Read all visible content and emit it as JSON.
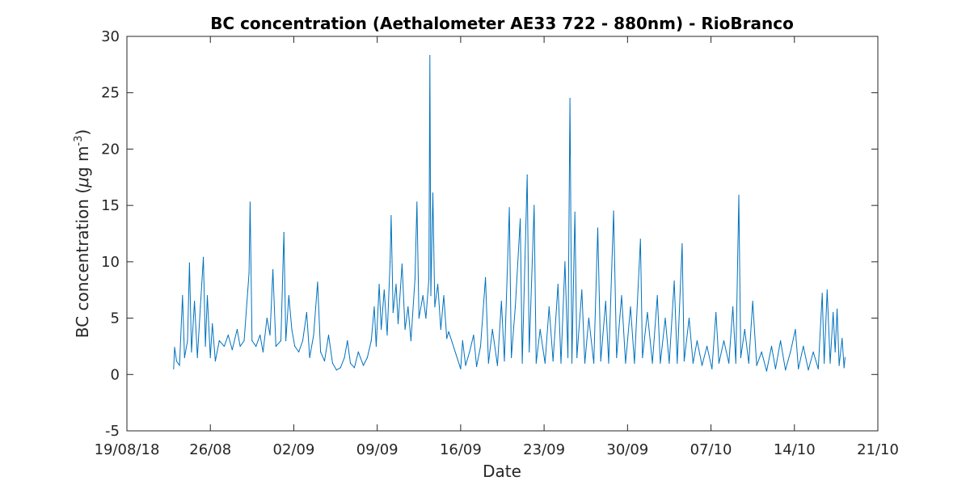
{
  "chart_data": {
    "type": "line",
    "title": "BC concentration (Aethalometer AE33 722 - 880nm) - RioBranco",
    "xlabel": "Date",
    "ylabel_main": "BC concentration (",
    "ylabel_mu": "μ",
    "ylabel_rest": "g m",
    "ylabel_exp": "-3",
    "ylabel_close": ")",
    "xlim": [
      "2018-08-19",
      "2018-10-21"
    ],
    "ylim": [
      -5,
      30
    ],
    "grid": false,
    "line_color": "#0072BD",
    "xticks": [
      {
        "date": "2018-08-19",
        "label": "19/08/18"
      },
      {
        "date": "2018-08-26",
        "label": "26/08"
      },
      {
        "date": "2018-09-02",
        "label": "02/09"
      },
      {
        "date": "2018-09-09",
        "label": "09/09"
      },
      {
        "date": "2018-09-16",
        "label": "16/09"
      },
      {
        "date": "2018-09-23",
        "label": "23/09"
      },
      {
        "date": "2018-09-30",
        "label": "30/09"
      },
      {
        "date": "2018-10-07",
        "label": "07/10"
      },
      {
        "date": "2018-10-14",
        "label": "14/10"
      },
      {
        "date": "2018-10-21",
        "label": "21/10"
      }
    ],
    "yticks": [
      -5,
      0,
      5,
      10,
      15,
      20,
      25,
      30
    ],
    "series": [
      {
        "values": [
          [
            "2018-08-22T22:00",
            0.5
          ],
          [
            "2018-08-23T00:00",
            2.4
          ],
          [
            "2018-08-23T04:00",
            1.2
          ],
          [
            "2018-08-23T10:00",
            0.8
          ],
          [
            "2018-08-23T16:00",
            7.0
          ],
          [
            "2018-08-23T20:00",
            1.5
          ],
          [
            "2018-08-24T02:00",
            3.0
          ],
          [
            "2018-08-24T06:00",
            9.9
          ],
          [
            "2018-08-24T10:00",
            2.0
          ],
          [
            "2018-08-24T16:00",
            6.5
          ],
          [
            "2018-08-24T22:00",
            1.5
          ],
          [
            "2018-08-25T04:00",
            6.0
          ],
          [
            "2018-08-25T10:00",
            10.4
          ],
          [
            "2018-08-25T14:00",
            2.5
          ],
          [
            "2018-08-25T18:00",
            7.0
          ],
          [
            "2018-08-26T00:00",
            1.5
          ],
          [
            "2018-08-26T04:00",
            4.5
          ],
          [
            "2018-08-26T10:00",
            1.2
          ],
          [
            "2018-08-26T18:00",
            3.0
          ],
          [
            "2018-08-27T04:00",
            2.5
          ],
          [
            "2018-08-27T12:00",
            3.5
          ],
          [
            "2018-08-27T20:00",
            2.2
          ],
          [
            "2018-08-28T06:00",
            4.0
          ],
          [
            "2018-08-28T12:00",
            2.5
          ],
          [
            "2018-08-28T20:00",
            3.0
          ],
          [
            "2018-08-29T06:00",
            9.0
          ],
          [
            "2018-08-29T08:00",
            15.3
          ],
          [
            "2018-08-29T12:00",
            3.0
          ],
          [
            "2018-08-29T20:00",
            2.5
          ],
          [
            "2018-08-30T04:00",
            3.5
          ],
          [
            "2018-08-30T10:00",
            2.0
          ],
          [
            "2018-08-30T18:00",
            5.0
          ],
          [
            "2018-08-31T00:00",
            3.5
          ],
          [
            "2018-08-31T06:00",
            9.3
          ],
          [
            "2018-08-31T12:00",
            2.5
          ],
          [
            "2018-08-31T22:00",
            3.0
          ],
          [
            "2018-09-01T04:00",
            12.6
          ],
          [
            "2018-09-01T08:00",
            3.0
          ],
          [
            "2018-09-01T14:00",
            7.0
          ],
          [
            "2018-09-01T20:00",
            4.0
          ],
          [
            "2018-09-02T02:00",
            2.5
          ],
          [
            "2018-09-02T10:00",
            2.0
          ],
          [
            "2018-09-02T18:00",
            3.0
          ],
          [
            "2018-09-03T02:00",
            5.5
          ],
          [
            "2018-09-03T08:00",
            1.5
          ],
          [
            "2018-09-03T16:00",
            3.5
          ],
          [
            "2018-09-04T00:00",
            8.2
          ],
          [
            "2018-09-04T06:00",
            2.0
          ],
          [
            "2018-09-04T14:00",
            1.2
          ],
          [
            "2018-09-04T22:00",
            3.5
          ],
          [
            "2018-09-05T06:00",
            1.0
          ],
          [
            "2018-09-05T14:00",
            0.4
          ],
          [
            "2018-09-05T22:00",
            0.6
          ],
          [
            "2018-09-06T06:00",
            1.5
          ],
          [
            "2018-09-06T12:00",
            3.0
          ],
          [
            "2018-09-06T18:00",
            1.0
          ],
          [
            "2018-09-07T02:00",
            0.6
          ],
          [
            "2018-09-07T10:00",
            2.0
          ],
          [
            "2018-09-07T20:00",
            0.8
          ],
          [
            "2018-09-08T04:00",
            1.5
          ],
          [
            "2018-09-08T12:00",
            3.0
          ],
          [
            "2018-09-08T18:00",
            6.0
          ],
          [
            "2018-09-08T22:00",
            2.5
          ],
          [
            "2018-09-09T04:00",
            8.0
          ],
          [
            "2018-09-09T08:00",
            4.0
          ],
          [
            "2018-09-09T14:00",
            7.5
          ],
          [
            "2018-09-09T20:00",
            3.5
          ],
          [
            "2018-09-10T02:00",
            10.0
          ],
          [
            "2018-09-10T04:00",
            14.1
          ],
          [
            "2018-09-10T08:00",
            5.5
          ],
          [
            "2018-09-10T14:00",
            8.0
          ],
          [
            "2018-09-10T18:00",
            4.5
          ],
          [
            "2018-09-11T02:00",
            9.8
          ],
          [
            "2018-09-11T08:00",
            4.0
          ],
          [
            "2018-09-11T14:00",
            6.0
          ],
          [
            "2018-09-11T20:00",
            3.0
          ],
          [
            "2018-09-12T04:00",
            8.5
          ],
          [
            "2018-09-12T08:00",
            15.3
          ],
          [
            "2018-09-12T12:00",
            5.0
          ],
          [
            "2018-09-12T20:00",
            7.0
          ],
          [
            "2018-09-13T02:00",
            5.0
          ],
          [
            "2018-09-13T08:00",
            8.5
          ],
          [
            "2018-09-13T10:00",
            28.3
          ],
          [
            "2018-09-13T12:00",
            7.0
          ],
          [
            "2018-09-13T16:00",
            16.1
          ],
          [
            "2018-09-13T20:00",
            6.0
          ],
          [
            "2018-09-14T02:00",
            8.0
          ],
          [
            "2018-09-14T08:00",
            4.0
          ],
          [
            "2018-09-14T14:00",
            7.0
          ],
          [
            "2018-09-14T20:00",
            3.2
          ],
          [
            "2018-09-15T00:00",
            3.8
          ],
          [
            "2018-09-16T00:00",
            0.5
          ],
          [
            "2018-09-16T04:00",
            3.0
          ],
          [
            "2018-09-16T10:00",
            0.8
          ],
          [
            "2018-09-16T18:00",
            2.0
          ],
          [
            "2018-09-17T02:00",
            3.5
          ],
          [
            "2018-09-17T08:00",
            0.7
          ],
          [
            "2018-09-17T16:00",
            2.5
          ],
          [
            "2018-09-18T02:00",
            8.6
          ],
          [
            "2018-09-18T08:00",
            1.0
          ],
          [
            "2018-09-18T16:00",
            4.0
          ],
          [
            "2018-09-19T02:00",
            0.8
          ],
          [
            "2018-09-19T10:00",
            6.5
          ],
          [
            "2018-09-19T16:00",
            1.2
          ],
          [
            "2018-09-20T02:00",
            14.8
          ],
          [
            "2018-09-20T06:00",
            1.5
          ],
          [
            "2018-09-20T14:00",
            6.0
          ],
          [
            "2018-09-21T00:00",
            13.8
          ],
          [
            "2018-09-21T04:00",
            1.0
          ],
          [
            "2018-09-21T14:00",
            17.7
          ],
          [
            "2018-09-21T18:00",
            2.0
          ],
          [
            "2018-09-22T04:00",
            15.0
          ],
          [
            "2018-09-22T08:00",
            1.0
          ],
          [
            "2018-09-22T16:00",
            4.0
          ],
          [
            "2018-09-23T02:00",
            1.0
          ],
          [
            "2018-09-23T10:00",
            6.0
          ],
          [
            "2018-09-23T18:00",
            1.2
          ],
          [
            "2018-09-24T04:00",
            8.0
          ],
          [
            "2018-09-24T10:00",
            1.0
          ],
          [
            "2018-09-24T18:00",
            10.0
          ],
          [
            "2018-09-25T00:00",
            1.5
          ],
          [
            "2018-09-25T04:00",
            24.5
          ],
          [
            "2018-09-25T08:00",
            1.0
          ],
          [
            "2018-09-25T14:00",
            14.4
          ],
          [
            "2018-09-25T18:00",
            1.5
          ],
          [
            "2018-09-26T04:00",
            7.5
          ],
          [
            "2018-09-26T10:00",
            1.0
          ],
          [
            "2018-09-26T18:00",
            5.0
          ],
          [
            "2018-09-27T04:00",
            1.0
          ],
          [
            "2018-09-27T12:00",
            13.0
          ],
          [
            "2018-09-27T18:00",
            1.2
          ],
          [
            "2018-09-28T04:00",
            6.5
          ],
          [
            "2018-09-28T10:00",
            1.0
          ],
          [
            "2018-09-28T20:00",
            14.5
          ],
          [
            "2018-09-29T02:00",
            1.5
          ],
          [
            "2018-09-29T12:00",
            7.0
          ],
          [
            "2018-09-29T20:00",
            1.0
          ],
          [
            "2018-09-30T06:00",
            6.0
          ],
          [
            "2018-09-30T14:00",
            1.0
          ],
          [
            "2018-10-01T02:00",
            12.0
          ],
          [
            "2018-10-01T06:00",
            1.5
          ],
          [
            "2018-10-01T16:00",
            5.5
          ],
          [
            "2018-10-02T02:00",
            1.0
          ],
          [
            "2018-10-02T12:00",
            7.0
          ],
          [
            "2018-10-02T18:00",
            1.0
          ],
          [
            "2018-10-03T04:00",
            5.0
          ],
          [
            "2018-10-03T12:00",
            1.0
          ],
          [
            "2018-10-03T22:00",
            8.3
          ],
          [
            "2018-10-04T04:00",
            1.0
          ],
          [
            "2018-10-04T14:00",
            11.6
          ],
          [
            "2018-10-04T18:00",
            1.2
          ],
          [
            "2018-10-05T04:00",
            5.0
          ],
          [
            "2018-10-05T12:00",
            1.0
          ],
          [
            "2018-10-05T20:00",
            3.0
          ],
          [
            "2018-10-06T06:00",
            0.8
          ],
          [
            "2018-10-06T16:00",
            2.5
          ],
          [
            "2018-10-07T02:00",
            0.5
          ],
          [
            "2018-10-07T10:00",
            5.5
          ],
          [
            "2018-10-07T16:00",
            1.0
          ],
          [
            "2018-10-08T02:00",
            3.0
          ],
          [
            "2018-10-08T12:00",
            1.0
          ],
          [
            "2018-10-08T20:00",
            6.0
          ],
          [
            "2018-10-09T02:00",
            1.0
          ],
          [
            "2018-10-09T08:00",
            15.9
          ],
          [
            "2018-10-09T12:00",
            1.5
          ],
          [
            "2018-10-09T20:00",
            4.0
          ],
          [
            "2018-10-10T04:00",
            1.0
          ],
          [
            "2018-10-10T12:00",
            6.5
          ],
          [
            "2018-10-10T20:00",
            0.8
          ],
          [
            "2018-10-11T06:00",
            2.0
          ],
          [
            "2018-10-11T16:00",
            0.3
          ],
          [
            "2018-10-12T02:00",
            2.5
          ],
          [
            "2018-10-12T10:00",
            0.5
          ],
          [
            "2018-10-12T20:00",
            3.0
          ],
          [
            "2018-10-13T06:00",
            0.4
          ],
          [
            "2018-10-13T16:00",
            2.0
          ],
          [
            "2018-10-14T02:00",
            4.0
          ],
          [
            "2018-10-14T08:00",
            0.5
          ],
          [
            "2018-10-14T18:00",
            2.5
          ],
          [
            "2018-10-15T04:00",
            0.4
          ],
          [
            "2018-10-15T14:00",
            2.0
          ],
          [
            "2018-10-16T00:00",
            0.5
          ],
          [
            "2018-10-16T08:00",
            7.2
          ],
          [
            "2018-10-16T12:00",
            1.0
          ],
          [
            "2018-10-16T18:00",
            7.5
          ],
          [
            "2018-10-17T00:00",
            1.0
          ],
          [
            "2018-10-17T06:00",
            5.5
          ],
          [
            "2018-10-17T10:00",
            2.0
          ],
          [
            "2018-10-17T14:00",
            5.8
          ],
          [
            "2018-10-17T18:00",
            0.8
          ],
          [
            "2018-10-18T00:00",
            3.2
          ],
          [
            "2018-10-18T04:00",
            0.6
          ],
          [
            "2018-10-18T06:00",
            1.5
          ]
        ]
      }
    ]
  }
}
